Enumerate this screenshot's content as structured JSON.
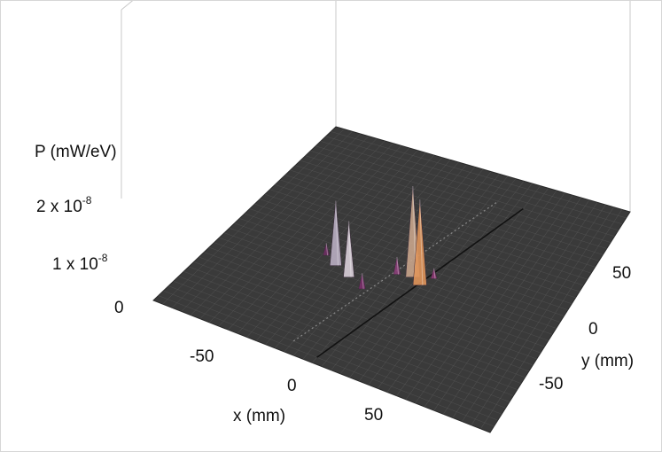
{
  "chart_data": {
    "type": "surface3d",
    "z_axis": {
      "label": "P (mW/eV)",
      "ticks": [
        {
          "value": 0,
          "mantissa": "0",
          "exp": ""
        },
        {
          "value": 1e-08,
          "mantissa": "1 x 10",
          "exp": "-8"
        },
        {
          "value": 2e-08,
          "mantissa": "2 x 10",
          "exp": "-8"
        }
      ]
    },
    "x_axis": {
      "label": "x (mm)",
      "ticks": [
        -50,
        0,
        50
      ],
      "range": [
        -90,
        90
      ]
    },
    "y_axis": {
      "label": "y (mm)",
      "ticks": [
        -50,
        0,
        50
      ],
      "range": [
        -90,
        90
      ]
    },
    "peaks": [
      {
        "x": 8,
        "y": -4,
        "z": 2.6e-08,
        "color": "#c9a58c"
      },
      {
        "x": 14,
        "y": -8,
        "z": 2.45e-08,
        "color": "#e0955a"
      },
      {
        "x": -30,
        "y": -15,
        "z": 1.85e-08,
        "color": "#b9aec2"
      },
      {
        "x": -20,
        "y": -20,
        "z": 1.6e-08,
        "color": "#d9cfd9"
      },
      {
        "x": 0,
        "y": -6,
        "z": 5e-09,
        "color": "#8c3f7a"
      },
      {
        "x": -10,
        "y": -25,
        "z": 4.5e-09,
        "color": "#7a2f6a"
      },
      {
        "x": -38,
        "y": -10,
        "z": 3.5e-09,
        "color": "#6e2d63"
      },
      {
        "x": 18,
        "y": 0,
        "z": 3e-09,
        "color": "#8f3a76"
      }
    ],
    "colors": {
      "surface": "#3a3a3a",
      "mesh": "#6a6a6a",
      "box": "#c8c8c8"
    }
  }
}
